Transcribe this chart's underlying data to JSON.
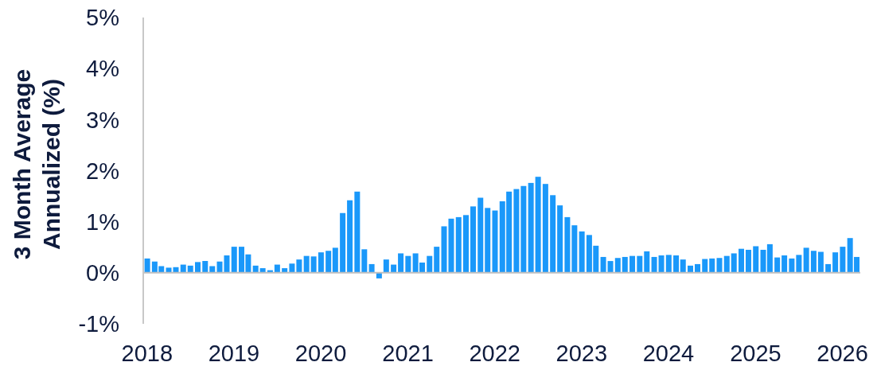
{
  "chart_data": {
    "type": "bar",
    "ylabel": "3 Month Average Annualized (%)",
    "x": [
      "2018-01",
      "2018-02",
      "2018-03",
      "2018-04",
      "2018-05",
      "2018-06",
      "2018-07",
      "2018-08",
      "2018-09",
      "2018-10",
      "2018-11",
      "2018-12",
      "2019-01",
      "2019-02",
      "2019-03",
      "2019-04",
      "2019-05",
      "2019-06",
      "2019-07",
      "2019-08",
      "2019-09",
      "2019-10",
      "2019-11",
      "2019-12",
      "2020-01",
      "2020-02",
      "2020-03",
      "2020-04",
      "2020-05",
      "2020-06",
      "2020-07",
      "2020-08",
      "2020-09",
      "2020-10",
      "2020-11",
      "2020-12",
      "2021-01",
      "2021-02",
      "2021-03",
      "2021-04",
      "2021-05",
      "2021-06",
      "2021-07",
      "2021-08",
      "2021-09",
      "2021-10",
      "2021-11",
      "2021-12",
      "2022-01",
      "2022-02",
      "2022-03",
      "2022-04",
      "2022-05",
      "2022-06",
      "2022-07",
      "2022-08",
      "2022-09",
      "2022-10",
      "2022-11",
      "2022-12",
      "2023-01",
      "2023-02",
      "2023-03",
      "2023-04",
      "2023-05",
      "2023-06",
      "2023-07",
      "2023-08",
      "2023-09",
      "2023-10",
      "2023-11",
      "2023-12",
      "2024-01",
      "2024-02",
      "2024-03",
      "2024-04",
      "2024-05",
      "2024-06",
      "2024-07",
      "2024-08",
      "2024-09",
      "2024-10",
      "2024-11",
      "2024-12",
      "2025-01",
      "2025-02",
      "2025-03",
      "2025-04",
      "2025-05",
      "2025-06",
      "2025-07",
      "2025-08",
      "2025-09",
      "2025-10",
      "2025-11",
      "2025-12",
      "2026-01",
      "2026-02",
      "2026-03"
    ],
    "values": [
      0.28,
      0.22,
      0.13,
      0.1,
      0.11,
      0.16,
      0.14,
      0.21,
      0.23,
      0.13,
      0.22,
      0.34,
      0.51,
      0.51,
      0.36,
      0.14,
      0.09,
      0.05,
      0.16,
      0.09,
      0.18,
      0.26,
      0.33,
      0.32,
      0.4,
      0.43,
      0.49,
      1.17,
      1.42,
      1.59,
      0.46,
      0.17,
      -0.11,
      0.26,
      0.16,
      0.38,
      0.33,
      0.38,
      0.2,
      0.33,
      0.51,
      0.91,
      1.06,
      1.09,
      1.13,
      1.3,
      1.47,
      1.27,
      1.22,
      1.4,
      1.59,
      1.64,
      1.7,
      1.76,
      1.88,
      1.74,
      1.52,
      1.32,
      1.09,
      0.93,
      0.81,
      0.74,
      0.53,
      0.31,
      0.23,
      0.29,
      0.31,
      0.33,
      0.33,
      0.42,
      0.31,
      0.34,
      0.35,
      0.34,
      0.26,
      0.14,
      0.17,
      0.27,
      0.28,
      0.29,
      0.33,
      0.38,
      0.47,
      0.45,
      0.52,
      0.45,
      0.56,
      0.3,
      0.34,
      0.28,
      0.35,
      0.49,
      0.43,
      0.41,
      0.17,
      0.4,
      0.51,
      0.68,
      0.31
    ],
    "color": "#1a98fa",
    "xlim": [
      "2017-12-16",
      "2026-03-17"
    ],
    "xticks": [
      "2018",
      "2019",
      "2020",
      "2021",
      "2022",
      "2023",
      "2024",
      "2025",
      "2026"
    ],
    "ylim": [
      -1,
      5
    ],
    "yticks": [
      {
        "value": -1,
        "label": "-1%"
      },
      {
        "value": 0,
        "label": "0%"
      },
      {
        "value": 1,
        "label": "1%"
      },
      {
        "value": 2,
        "label": "2%"
      },
      {
        "value": 3,
        "label": "3%"
      },
      {
        "value": 4,
        "label": "4%"
      },
      {
        "value": 5,
        "label": "5%"
      }
    ],
    "ref_lines": [
      {
        "axis": "y",
        "value": 0,
        "color": "#bfbfbf"
      }
    ]
  }
}
